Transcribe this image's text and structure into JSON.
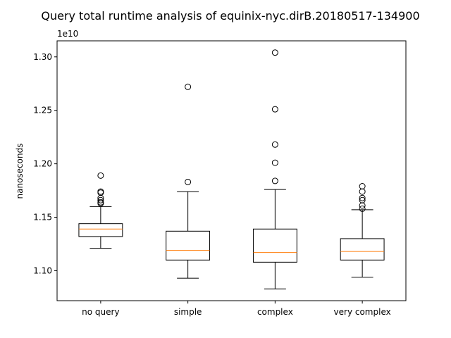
{
  "chart_data": {
    "type": "box",
    "title": "Query total runtime analysis of equinix-nyc.dirB.20180517-134900",
    "ylabel": "nanoseconds",
    "xlabel": "",
    "y_offset_label": "1e10",
    "y_scale_factor": 10000000000.0,
    "ylim": [
      1.072,
      1.315
    ],
    "y_ticks": [
      1.1,
      1.15,
      1.2,
      1.25,
      1.3
    ],
    "y_tick_labels": [
      "1.10",
      "1.15",
      "1.20",
      "1.25",
      "1.30"
    ],
    "grid": false,
    "categories": [
      "no query",
      "simple",
      "complex",
      "very complex"
    ],
    "boxes": [
      {
        "category": "no query",
        "whisker_low": 1.121,
        "q1": 1.132,
        "median": 1.139,
        "q3": 1.144,
        "whisker_high": 1.16,
        "outliers": [
          1.189,
          1.174,
          1.173,
          1.168,
          1.166,
          1.164,
          1.163
        ]
      },
      {
        "category": "simple",
        "whisker_low": 1.093,
        "q1": 1.11,
        "median": 1.119,
        "q3": 1.137,
        "whisker_high": 1.174,
        "outliers": [
          1.272,
          1.183
        ]
      },
      {
        "category": "complex",
        "whisker_low": 1.083,
        "q1": 1.108,
        "median": 1.117,
        "q3": 1.139,
        "whisker_high": 1.176,
        "outliers": [
          1.304,
          1.251,
          1.218,
          1.201,
          1.184
        ]
      },
      {
        "category": "very complex",
        "whisker_low": 1.094,
        "q1": 1.11,
        "median": 1.118,
        "q3": 1.13,
        "whisker_high": 1.157,
        "outliers": [
          1.179,
          1.174,
          1.168,
          1.166,
          1.161,
          1.158
        ]
      }
    ],
    "colors": {
      "box": "#000000",
      "median": "#ff7f0e",
      "outlier_edge": "#000000",
      "axes": "#000000",
      "background": "#ffffff"
    }
  }
}
